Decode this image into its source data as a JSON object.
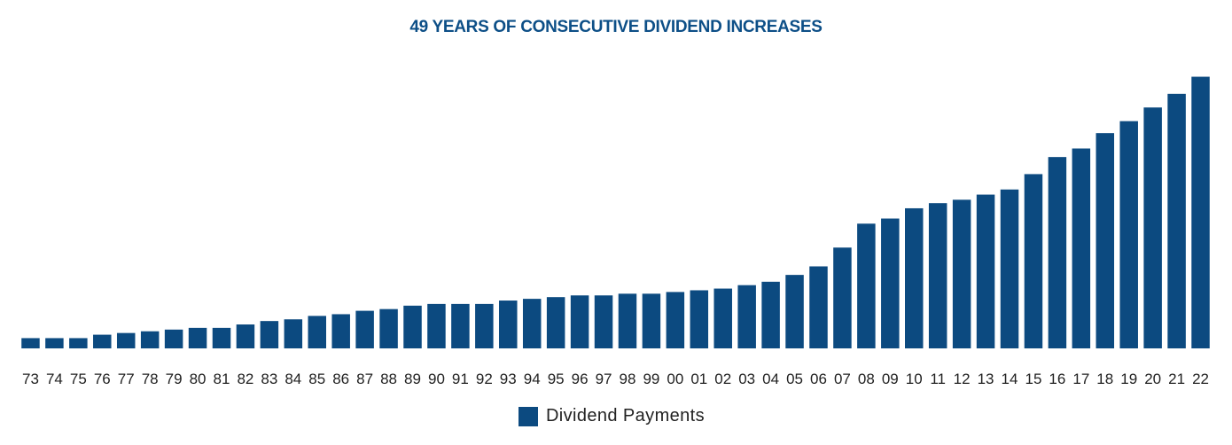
{
  "chart_data": {
    "type": "bar",
    "title": "49 YEARS OF CONSECUTIVE DIVIDEND INCREASES",
    "xlabel": "",
    "ylabel": "",
    "categories": [
      "73",
      "74",
      "75",
      "76",
      "77",
      "78",
      "79",
      "80",
      "81",
      "82",
      "83",
      "84",
      "85",
      "86",
      "87",
      "88",
      "89",
      "90",
      "91",
      "92",
      "93",
      "94",
      "95",
      "96",
      "97",
      "98",
      "99",
      "00",
      "01",
      "02",
      "03",
      "04",
      "05",
      "06",
      "07",
      "08",
      "09",
      "10",
      "11",
      "12",
      "13",
      "14",
      "15",
      "16",
      "17",
      "18",
      "19",
      "20",
      "21",
      "22"
    ],
    "series": [
      {
        "name": "Dividend Payments",
        "values": [
          12,
          12,
          12,
          16,
          18,
          20,
          22,
          24,
          24,
          28,
          32,
          34,
          38,
          40,
          44,
          46,
          50,
          52,
          52,
          52,
          56,
          58,
          60,
          62,
          62,
          64,
          64,
          66,
          68,
          70,
          74,
          78,
          86,
          96,
          118,
          146,
          152,
          164,
          170,
          174,
          180,
          186,
          204,
          224,
          234,
          252,
          266,
          282,
          298,
          318
        ]
      }
    ],
    "ylim": [
      0,
      330
    ],
    "grid": false,
    "legend_position": "bottom-center",
    "colors": {
      "bar": "#0c4a80",
      "title": "#0d4f87",
      "tick_label": "#222222"
    }
  }
}
